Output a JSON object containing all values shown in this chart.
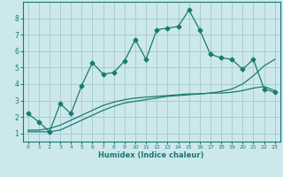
{
  "xlabel": "Humidex (Indice chaleur)",
  "xlim": [
    -0.5,
    23.5
  ],
  "ylim": [
    0.5,
    9.0
  ],
  "yticks": [
    1,
    2,
    3,
    4,
    5,
    6,
    7,
    8
  ],
  "xticks": [
    0,
    1,
    2,
    3,
    4,
    5,
    6,
    7,
    8,
    9,
    10,
    11,
    12,
    13,
    14,
    15,
    16,
    17,
    18,
    19,
    20,
    21,
    22,
    23
  ],
  "bg_color": "#cce8ec",
  "grid_color": "#aacccc",
  "line_color": "#1a7a6e",
  "line1_x": [
    0,
    1,
    2,
    3,
    4,
    5,
    6,
    7,
    8,
    9,
    10,
    11,
    12,
    13,
    14,
    15,
    16,
    17,
    18,
    19,
    20,
    21,
    22,
    23
  ],
  "line1_y": [
    2.2,
    1.7,
    1.1,
    2.8,
    2.2,
    3.9,
    5.3,
    4.6,
    4.7,
    5.4,
    6.7,
    5.5,
    7.3,
    7.4,
    7.5,
    8.5,
    7.3,
    5.8,
    5.6,
    5.5,
    4.9,
    5.5,
    3.7,
    3.5
  ],
  "line2_x": [
    0,
    1,
    2,
    3,
    4,
    5,
    6,
    7,
    8,
    9,
    10,
    11,
    12,
    13,
    14,
    15,
    16,
    17,
    18,
    19,
    20,
    21,
    22,
    23
  ],
  "line2_y": [
    1.2,
    1.2,
    1.3,
    1.5,
    1.8,
    2.1,
    2.4,
    2.7,
    2.9,
    3.05,
    3.15,
    3.2,
    3.25,
    3.3,
    3.35,
    3.4,
    3.4,
    3.45,
    3.45,
    3.5,
    3.6,
    3.75,
    3.85,
    3.6
  ],
  "line3_x": [
    0,
    1,
    2,
    3,
    4,
    5,
    6,
    7,
    8,
    9,
    10,
    11,
    12,
    13,
    14,
    15,
    16,
    17,
    18,
    19,
    20,
    21,
    22,
    23
  ],
  "line3_y": [
    1.1,
    1.1,
    1.1,
    1.2,
    1.5,
    1.8,
    2.1,
    2.4,
    2.65,
    2.85,
    2.95,
    3.05,
    3.15,
    3.25,
    3.3,
    3.35,
    3.4,
    3.45,
    3.55,
    3.7,
    4.0,
    4.5,
    5.1,
    5.5
  ]
}
